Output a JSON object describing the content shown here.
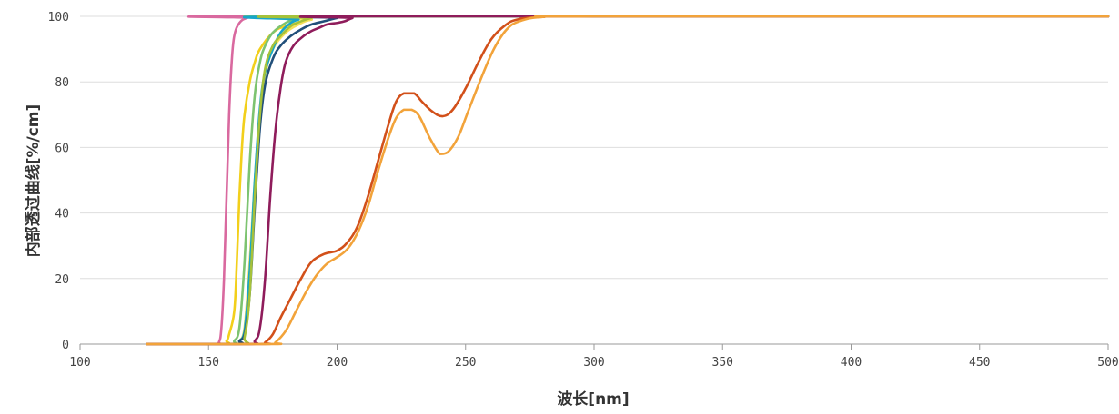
{
  "chart_data": {
    "type": "line",
    "title": "",
    "xlabel": "波长[nm]",
    "ylabel": "内部透过曲线[%/cm]",
    "xlim": [
      100,
      500
    ],
    "ylim": [
      0,
      100
    ],
    "x_ticks": [
      100,
      150,
      200,
      250,
      300,
      350,
      400,
      450,
      500
    ],
    "y_ticks": [
      0,
      20,
      40,
      60,
      80,
      100
    ],
    "grid": "horizontal",
    "legend": "none",
    "series": [
      {
        "color": "#d9699f",
        "points": [
          [
            126,
            0
          ],
          [
            152,
            0
          ],
          [
            154,
            0.5
          ],
          [
            155,
            5
          ],
          [
            156,
            20
          ],
          [
            157,
            45
          ],
          [
            158,
            70
          ],
          [
            159,
            86
          ],
          [
            160,
            94
          ],
          [
            162,
            98
          ],
          [
            165,
            99.5
          ],
          [
            170,
            100
          ],
          [
            500,
            100
          ]
        ]
      },
      {
        "color": "#f2cf1b",
        "points": [
          [
            126,
            0
          ],
          [
            155,
            0
          ],
          [
            157,
            1
          ],
          [
            158,
            3
          ],
          [
            160,
            10
          ],
          [
            161,
            25
          ],
          [
            162,
            45
          ],
          [
            163,
            60
          ],
          [
            164,
            70
          ],
          [
            166,
            80
          ],
          [
            168,
            86
          ],
          [
            170,
            90
          ],
          [
            175,
            95
          ],
          [
            180,
            97
          ],
          [
            190,
            99
          ],
          [
            200,
            100
          ],
          [
            500,
            100
          ]
        ]
      },
      {
        "color": "#f5e05a",
        "points": [
          [
            126,
            0
          ],
          [
            160,
            0
          ],
          [
            162,
            1
          ],
          [
            164,
            5
          ],
          [
            166,
            25
          ],
          [
            168,
            50
          ],
          [
            170,
            70
          ],
          [
            172,
            82
          ],
          [
            175,
            90
          ],
          [
            180,
            95
          ],
          [
            185,
            97.5
          ],
          [
            190,
            99
          ],
          [
            200,
            100
          ],
          [
            500,
            100
          ]
        ]
      },
      {
        "color": "#7dc370",
        "points": [
          [
            126,
            0
          ],
          [
            158,
            0
          ],
          [
            160,
            1
          ],
          [
            162,
            5
          ],
          [
            164,
            25
          ],
          [
            166,
            55
          ],
          [
            168,
            76
          ],
          [
            170,
            86
          ],
          [
            172,
            91
          ],
          [
            175,
            95
          ],
          [
            180,
            98
          ],
          [
            185,
            99.5
          ],
          [
            190,
            100
          ],
          [
            500,
            100
          ]
        ]
      },
      {
        "color": "#17a6c9",
        "points": [
          [
            126,
            0
          ],
          [
            160,
            0
          ],
          [
            162,
            1
          ],
          [
            164,
            4
          ],
          [
            166,
            22
          ],
          [
            168,
            50
          ],
          [
            170,
            72
          ],
          [
            172,
            83
          ],
          [
            175,
            90
          ],
          [
            178,
            95
          ],
          [
            182,
            98
          ],
          [
            185,
            99
          ],
          [
            190,
            100
          ],
          [
            500,
            100
          ]
        ]
      },
      {
        "color": "#214f7a",
        "points": [
          [
            126,
            0
          ],
          [
            160,
            0
          ],
          [
            162,
            1
          ],
          [
            164,
            3
          ],
          [
            166,
            15
          ],
          [
            168,
            42
          ],
          [
            170,
            66
          ],
          [
            172,
            79
          ],
          [
            175,
            87
          ],
          [
            178,
            91
          ],
          [
            182,
            94
          ],
          [
            186,
            96
          ],
          [
            190,
            97.5
          ],
          [
            195,
            98.5
          ],
          [
            200,
            99.5
          ],
          [
            205,
            100
          ],
          [
            500,
            100
          ]
        ]
      },
      {
        "color": "#a6c23a",
        "points": [
          [
            126,
            0
          ],
          [
            162,
            0
          ],
          [
            164,
            2
          ],
          [
            166,
            15
          ],
          [
            168,
            45
          ],
          [
            170,
            70
          ],
          [
            172,
            84
          ],
          [
            175,
            91
          ],
          [
            178,
            94
          ],
          [
            182,
            97
          ],
          [
            186,
            98.5
          ],
          [
            190,
            99.5
          ],
          [
            195,
            100
          ],
          [
            500,
            100
          ]
        ]
      },
      {
        "color": "#8f1c5b",
        "points": [
          [
            126,
            0
          ],
          [
            165,
            0
          ],
          [
            168,
            1
          ],
          [
            170,
            5
          ],
          [
            172,
            20
          ],
          [
            174,
            45
          ],
          [
            176,
            65
          ],
          [
            178,
            78
          ],
          [
            180,
            86
          ],
          [
            183,
            91
          ],
          [
            187,
            94
          ],
          [
            190,
            95.5
          ],
          [
            193,
            96.5
          ],
          [
            196,
            97.5
          ],
          [
            200,
            98
          ],
          [
            203,
            98.5
          ],
          [
            206,
            99.5
          ],
          [
            210,
            100
          ],
          [
            500,
            100
          ]
        ]
      },
      {
        "color": "#d2501a",
        "points": [
          [
            126,
            0
          ],
          [
            170,
            0
          ],
          [
            172,
            0.5
          ],
          [
            175,
            3
          ],
          [
            178,
            8
          ],
          [
            182,
            14
          ],
          [
            186,
            20
          ],
          [
            190,
            25
          ],
          [
            195,
            27.5
          ],
          [
            200,
            28.5
          ],
          [
            204,
            31
          ],
          [
            208,
            36
          ],
          [
            212,
            45
          ],
          [
            216,
            56
          ],
          [
            220,
            67
          ],
          [
            223,
            74
          ],
          [
            226,
            76.5
          ],
          [
            230,
            76.5
          ],
          [
            233,
            74
          ],
          [
            237,
            71
          ],
          [
            241,
            69.5
          ],
          [
            245,
            71.5
          ],
          [
            250,
            78
          ],
          [
            255,
            86
          ],
          [
            260,
            93
          ],
          [
            265,
            97
          ],
          [
            270,
            99
          ],
          [
            280,
            99.8
          ],
          [
            300,
            100
          ],
          [
            500,
            100
          ]
        ]
      },
      {
        "color": "#f2a33a",
        "points": [
          [
            126,
            0
          ],
          [
            174,
            0
          ],
          [
            176,
            0.5
          ],
          [
            180,
            4
          ],
          [
            184,
            10
          ],
          [
            188,
            16
          ],
          [
            192,
            21
          ],
          [
            196,
            24.5
          ],
          [
            200,
            26.5
          ],
          [
            204,
            29
          ],
          [
            208,
            34
          ],
          [
            212,
            42
          ],
          [
            216,
            53
          ],
          [
            220,
            63
          ],
          [
            223,
            69
          ],
          [
            226,
            71.5
          ],
          [
            229,
            71.5
          ],
          [
            232,
            69.5
          ],
          [
            236,
            63
          ],
          [
            240,
            58
          ],
          [
            243,
            58.5
          ],
          [
            247,
            63
          ],
          [
            251,
            71
          ],
          [
            256,
            81
          ],
          [
            261,
            90
          ],
          [
            266,
            96
          ],
          [
            271,
            98.5
          ],
          [
            280,
            99.8
          ],
          [
            300,
            100
          ],
          [
            500,
            100
          ]
        ]
      }
    ]
  }
}
